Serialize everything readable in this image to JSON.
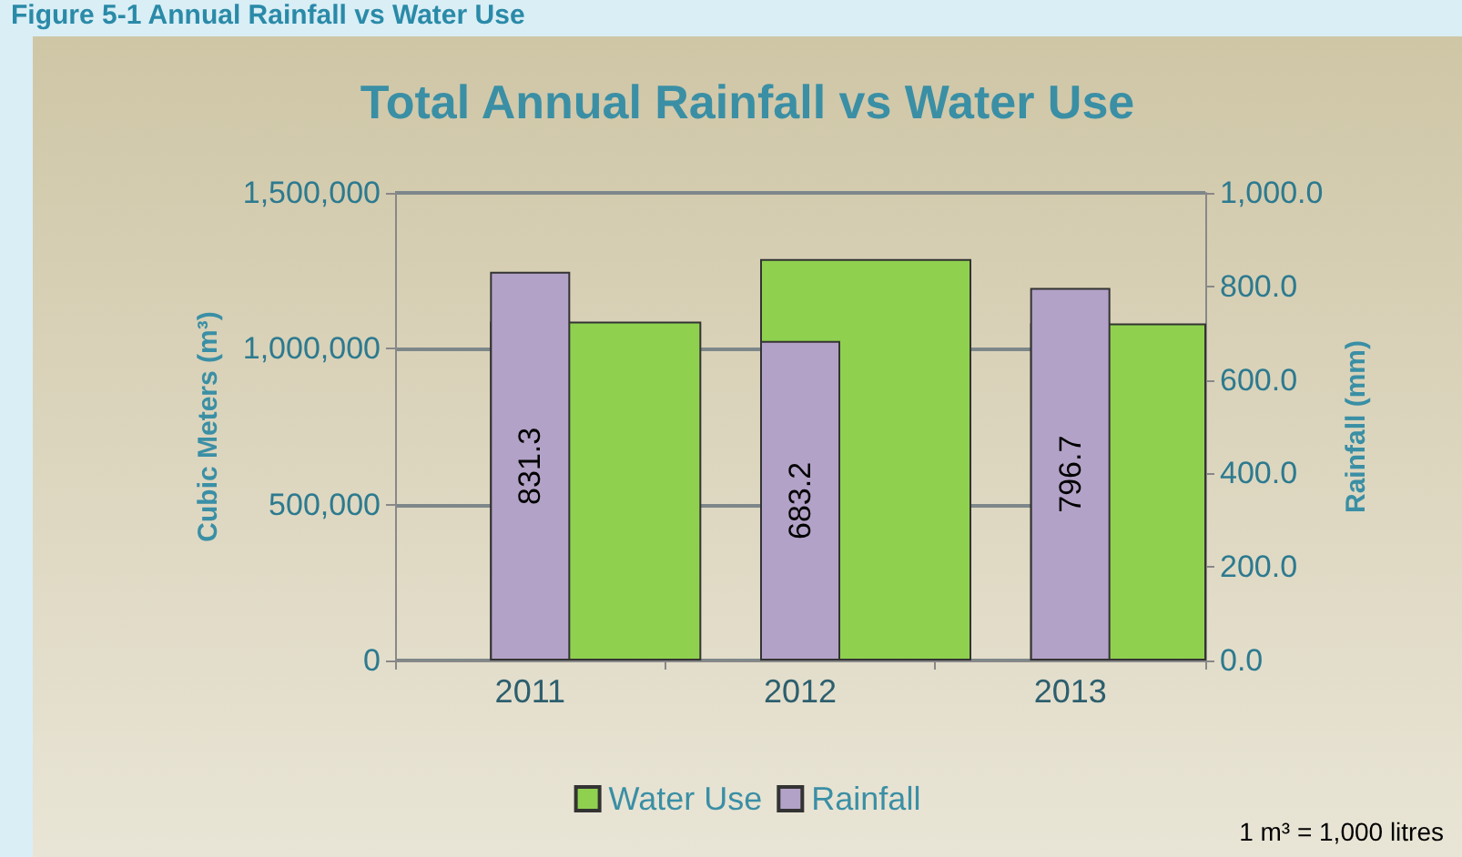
{
  "chart_data": {
    "type": "bar",
    "title": "Total Annual Rainfall vs Water Use",
    "annotations": [
      "Figure 5-1 Annual Rainfall vs Water Use",
      "1 m³ = 1,000 litres"
    ],
    "categories": [
      "2011",
      "2012",
      "2013"
    ],
    "series": [
      {
        "name": "Water Use",
        "color": "#8fd14f",
        "values": [
          1087000,
          1288000,
          1081000
        ]
      },
      {
        "name": "Rainfall",
        "color": "#b3a2c7",
        "axis": "y2",
        "values": [
          831.3,
          683.2,
          796.7
        ],
        "value_labels": [
          "831.3",
          "683.2",
          "796.7"
        ]
      }
    ],
    "ylabel": "Cubic Meters (m³)",
    "y2label": "Rainfall (mm)",
    "ylim": [
      0,
      1500000
    ],
    "yticks": [
      {
        "value": 0,
        "label": "0"
      },
      {
        "value": 500000,
        "label": "500,000"
      },
      {
        "value": 1000000,
        "label": "1,000,000"
      },
      {
        "value": 1500000,
        "label": "1,500,000"
      }
    ],
    "y2lim": [
      0,
      1000
    ],
    "y2ticks": [
      {
        "value": 0,
        "label": "0.0"
      },
      {
        "value": 200,
        "label": "200.0"
      },
      {
        "value": 400,
        "label": "400.0"
      },
      {
        "value": 600,
        "label": "600.0"
      },
      {
        "value": 800,
        "label": "800.0"
      },
      {
        "value": 1000,
        "label": "1,000.0"
      }
    ],
    "grid": "y",
    "legend": "bottom"
  }
}
